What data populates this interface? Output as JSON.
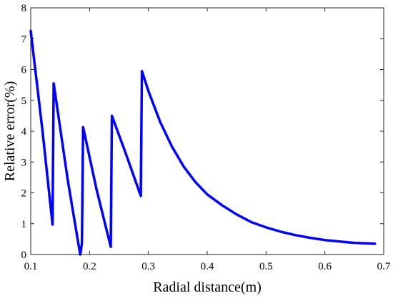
{
  "chart_data": {
    "type": "line",
    "title": "",
    "xlabel": "Radial distance(m)",
    "ylabel": "Relative error(%)",
    "xlim": [
      0.1,
      0.7
    ],
    "ylim": [
      0,
      8
    ],
    "xticks": [
      "0.1",
      "0.2",
      "0.3",
      "0.4",
      "0.5",
      "0.6",
      "0.7"
    ],
    "yticks": [
      "0",
      "1",
      "2",
      "3",
      "4",
      "5",
      "6",
      "7",
      "8"
    ],
    "grid": false,
    "legend": "none",
    "line_color": "#0000ff",
    "series": [
      {
        "x": [
          0.1,
          0.12,
          0.137,
          0.139,
          0.163,
          0.184,
          0.1845,
          0.187,
          0.189,
          0.212,
          0.236,
          0.238,
          0.263,
          0.287,
          0.289,
          0.3,
          0.32,
          0.34,
          0.36,
          0.38,
          0.4,
          0.425,
          0.45,
          0.475,
          0.5,
          0.525,
          0.55,
          0.575,
          0.6,
          0.625,
          0.65,
          0.685
        ],
        "y": [
          7.25,
          4.0,
          0.97,
          5.55,
          2.4,
          0.0,
          0.05,
          0.35,
          4.13,
          2.1,
          0.25,
          4.5,
          3.2,
          1.9,
          5.95,
          5.3,
          4.3,
          3.5,
          2.85,
          2.35,
          1.95,
          1.6,
          1.3,
          1.05,
          0.88,
          0.74,
          0.63,
          0.54,
          0.47,
          0.42,
          0.38,
          0.35
        ]
      }
    ]
  }
}
